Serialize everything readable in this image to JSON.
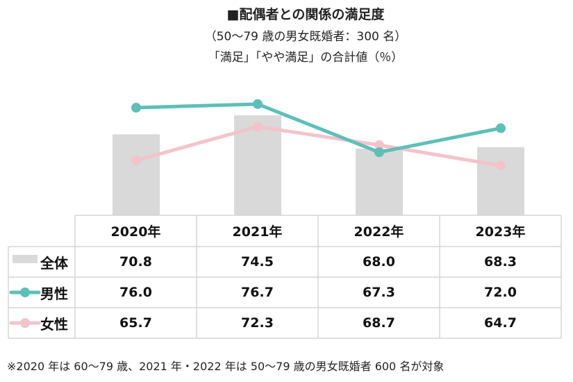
{
  "chart_data": {
    "type": "bar+line",
    "title": "■配偶者との関係の満足度",
    "subtitle": "（50～79 歳の男女既婚者：300 名）",
    "subtitle2": "「満足」「やや満足」の合計値（％）",
    "categories": [
      "2020年",
      "2021年",
      "2022年",
      "2023年"
    ],
    "ylim": [
      55,
      85
    ],
    "series": [
      {
        "name": "全体",
        "kind": "bar",
        "color": "#d9d9d9",
        "values": [
          70.8,
          74.5,
          68.0,
          68.3
        ],
        "display": [
          "70.8",
          "74.5",
          "68.0",
          "68.3"
        ]
      },
      {
        "name": "男性",
        "kind": "line",
        "color": "#5ebfb8",
        "values": [
          76.0,
          76.7,
          67.3,
          72.0
        ],
        "display": [
          "76.0",
          "76.7",
          "67.3",
          "72.0"
        ]
      },
      {
        "name": "女性",
        "kind": "line",
        "color": "#f3c3cc",
        "values": [
          65.7,
          72.3,
          68.7,
          64.7
        ],
        "display": [
          "65.7",
          "72.3",
          "68.7",
          "64.7"
        ]
      }
    ],
    "footnote": "※2020 年は 60～79 歳、2021 年・2022 年は 50～79 歳の男女既婚者 600 名が対象"
  }
}
